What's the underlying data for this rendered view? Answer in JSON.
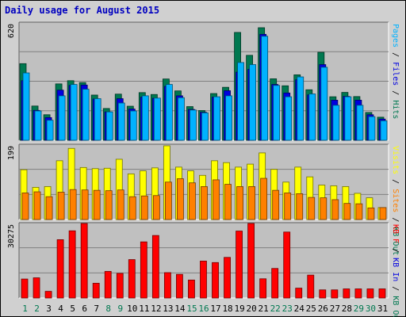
{
  "chart_data": {
    "type": "bar",
    "title": "Daily usage for August 2015",
    "categories": [
      "1",
      "2",
      "3",
      "4",
      "5",
      "6",
      "7",
      "8",
      "9",
      "10",
      "11",
      "12",
      "13",
      "14",
      "15",
      "16",
      "17",
      "18",
      "19",
      "20",
      "21",
      "22",
      "23",
      "24",
      "25",
      "26",
      "27",
      "28",
      "29",
      "30",
      "31"
    ],
    "weekend_days": [
      "1",
      "2",
      "8",
      "9",
      "15",
      "16",
      "22",
      "23",
      "29",
      "30"
    ],
    "colors": {
      "pages": "#00b2ff",
      "files": "#0000e0",
      "hits": "#007850",
      "visits": "#ffff00",
      "sites": "#ff8000",
      "kb": "#ff0000",
      "weekday_label": "#000000",
      "weekend_label": "#007850",
      "title": "#0000c0"
    },
    "panels": [
      {
        "axis_label_max": "620",
        "ylim": [
          0,
          620
        ],
        "legend": [
          {
            "text": "Pages",
            "color": "#00b2ff"
          },
          {
            "text": " / ",
            "color": "#000000"
          },
          {
            "text": "Files",
            "color": "#0000e0"
          },
          {
            "text": " / ",
            "color": "#000000"
          },
          {
            "text": "Hits",
            "color": "#007850"
          }
        ],
        "series": [
          {
            "name": "Hits",
            "color": "#007850",
            "values": [
              405,
              181,
              135,
              298,
              315,
              305,
              239,
              168,
              244,
              180,
              252,
              242,
              324,
              261,
              178,
              157,
              247,
              280,
              570,
              449,
              595,
              325,
              288,
              346,
              267,
              465,
              230,
              253,
              231,
              147,
              122
            ]
          },
          {
            "name": "Files",
            "color": "#0000e0",
            "values": [
              315,
              158,
              120,
              265,
              290,
              292,
              218,
              150,
              220,
              165,
              228,
              222,
              285,
              235,
              163,
              148,
              228,
              262,
              360,
              375,
              560,
              295,
              250,
              320,
              240,
              400,
              212,
              232,
              212,
              135,
              112
            ]
          },
          {
            "name": "Pages",
            "color": "#00b2ff",
            "values": [
              356,
              155,
              106,
              235,
              295,
              270,
              220,
              150,
              197,
              155,
              235,
              223,
              295,
              225,
              160,
              145,
              230,
              235,
              411,
              400,
              550,
              290,
              230,
              335,
              245,
              386,
              185,
              230,
              185,
              125,
              103
            ]
          }
        ]
      },
      {
        "axis_label_max": "199",
        "ylim": [
          0,
          199
        ],
        "legend": [
          {
            "text": "Visits",
            "color": "#ffff00"
          },
          {
            "text": " / ",
            "color": "#000000"
          },
          {
            "text": "Sites",
            "color": "#ff8000"
          },
          {
            "text": " / ",
            "color": "#000000"
          },
          {
            "text": "KB Out",
            "color": "#007850"
          }
        ],
        "series": [
          {
            "name": "Visits",
            "color": "#ffff00",
            "values": [
              133,
              86,
              88,
              157,
              190,
              139,
              136,
              137,
              161,
              122,
              130,
              138,
              197,
              140,
              130,
              118,
              157,
              152,
              140,
              148,
              178,
              134,
              100,
              140,
              114,
              92,
              90,
              88,
              70,
              58,
              32
            ]
          },
          {
            "name": "Sites",
            "color": "#ff8000",
            "values": [
              71,
              74,
              61,
              73,
              80,
              79,
              78,
              77,
              79,
              61,
              63,
              64,
              100,
              109,
              98,
              88,
              106,
              94,
              88,
              88,
              110,
              78,
              71,
              69,
              59,
              58,
              53,
              43,
              42,
              31,
              32
            ]
          }
        ]
      },
      {
        "axis_label_max": "30275",
        "ylim": [
          0,
          30275
        ],
        "legend": [
          {
            "text": "KB F",
            "color": "#ff0000"
          },
          {
            "text": " / ",
            "color": "#000000"
          },
          {
            "text": "KB In",
            "color": "#0000e0"
          },
          {
            "text": " / ",
            "color": "#000000"
          },
          {
            "text": "KB Out",
            "color": "#007850"
          }
        ],
        "series": [
          {
            "name": "KB F",
            "color": "#ff0000",
            "values": [
              7700,
              8200,
              2700,
              23700,
              27300,
              31400,
              6000,
              10800,
              10000,
              15600,
              22800,
              25400,
              10300,
              9600,
              7300,
              15000,
              14400,
              16500,
              27200,
              31500,
              7800,
              12000,
              26800,
              4000,
              9300,
              3300,
              3300,
              3700,
              3700,
              3700,
              3700
            ]
          }
        ]
      }
    ]
  }
}
